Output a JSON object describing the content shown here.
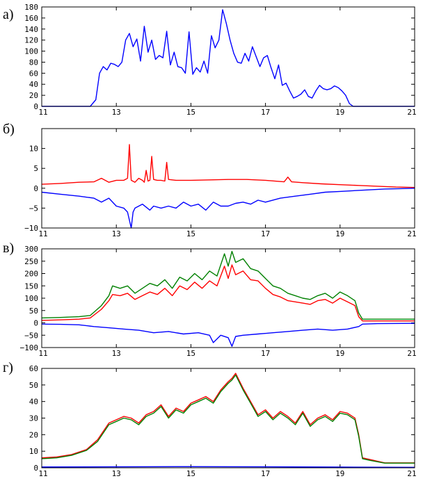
{
  "chart_data": [
    {
      "type": "line",
      "panel_label": "а)",
      "xlim": [
        11,
        21
      ],
      "ylim": [
        0,
        180
      ],
      "xticks": [
        "11",
        "13",
        "15",
        "17",
        "19",
        "21"
      ],
      "xtick_values": [
        11,
        13,
        15,
        17,
        19,
        21
      ],
      "yticks": [
        "0",
        "20",
        "40",
        "60",
        "80",
        "100",
        "120",
        "140",
        "160",
        "180"
      ],
      "ytick_values": [
        0,
        20,
        40,
        60,
        80,
        100,
        120,
        140,
        160,
        180
      ],
      "series": [
        {
          "name": "blue",
          "color": "#0000ff",
          "x": [
            11,
            12.3,
            12.45,
            12.55,
            12.65,
            12.75,
            12.85,
            12.95,
            13.05,
            13.15,
            13.25,
            13.35,
            13.45,
            13.55,
            13.65,
            13.75,
            13.85,
            13.95,
            14.05,
            14.15,
            14.25,
            14.35,
            14.45,
            14.55,
            14.65,
            14.75,
            14.85,
            14.95,
            15.05,
            15.15,
            15.25,
            15.35,
            15.45,
            15.55,
            15.65,
            15.75,
            15.85,
            15.95,
            16.05,
            16.15,
            16.25,
            16.35,
            16.45,
            16.55,
            16.65,
            16.75,
            16.85,
            16.95,
            17.05,
            17.15,
            17.25,
            17.35,
            17.45,
            17.55,
            17.65,
            17.75,
            17.85,
            17.95,
            18.05,
            18.15,
            18.25,
            18.35,
            18.45,
            18.55,
            18.65,
            18.75,
            18.85,
            18.95,
            19.05,
            19.15,
            19.25,
            19.35,
            19.45,
            19.55,
            19.65,
            21
          ],
          "y": [
            0,
            0,
            12,
            60,
            72,
            66,
            78,
            76,
            72,
            80,
            120,
            132,
            108,
            122,
            82,
            145,
            98,
            120,
            85,
            92,
            88,
            136,
            75,
            98,
            72,
            70,
            60,
            135,
            58,
            70,
            62,
            82,
            60,
            128,
            106,
            120,
            175,
            150,
            120,
            96,
            80,
            78,
            96,
            82,
            108,
            90,
            72,
            88,
            92,
            70,
            50,
            75,
            38,
            42,
            28,
            15,
            18,
            22,
            30,
            18,
            15,
            28,
            38,
            32,
            30,
            32,
            37,
            34,
            28,
            20,
            5,
            0,
            0,
            0,
            0,
            0
          ]
        }
      ]
    },
    {
      "type": "line",
      "panel_label": "б)",
      "xlim": [
        11,
        21
      ],
      "ylim": [
        -10,
        15
      ],
      "xticks": [
        "11",
        "13",
        "15",
        "17",
        "19",
        "21"
      ],
      "xtick_values": [
        11,
        13,
        15,
        17,
        19,
        21
      ],
      "yticks": [
        "−10",
        "−5",
        "0",
        "5",
        "10"
      ],
      "ytick_values": [
        -10,
        -5,
        0,
        5,
        10
      ],
      "series": [
        {
          "name": "red",
          "color": "#ff0000",
          "x": [
            11,
            11.5,
            12,
            12.4,
            12.6,
            12.8,
            13,
            13.2,
            13.3,
            13.35,
            13.4,
            13.5,
            13.6,
            13.7,
            13.75,
            13.8,
            13.85,
            13.9,
            13.95,
            14.0,
            14.1,
            14.2,
            14.3,
            14.35,
            14.4,
            14.6,
            15,
            15.5,
            16,
            16.5,
            17,
            17.5,
            17.6,
            17.7,
            18,
            18.5,
            19,
            19.5,
            20,
            20.5,
            21
          ],
          "y": [
            1.0,
            1.2,
            1.5,
            1.6,
            2.5,
            1.5,
            2.0,
            2.0,
            2.5,
            11.0,
            2.0,
            1.5,
            2.5,
            2.0,
            1.5,
            4.5,
            1.8,
            2.0,
            8.0,
            2.2,
            2.0,
            2.0,
            1.8,
            6.5,
            2.2,
            2.0,
            2.0,
            2.1,
            2.2,
            2.2,
            2.0,
            1.6,
            2.8,
            1.6,
            1.4,
            1.1,
            0.9,
            0.7,
            0.5,
            0.3,
            0.2
          ]
        },
        {
          "name": "blue",
          "color": "#0000ff",
          "x": [
            11,
            11.5,
            12,
            12.4,
            12.6,
            12.8,
            13,
            13.2,
            13.3,
            13.4,
            13.45,
            13.5,
            13.7,
            13.9,
            14,
            14.2,
            14.4,
            14.6,
            14.8,
            15,
            15.2,
            15.4,
            15.6,
            15.8,
            16,
            16.2,
            16.4,
            16.6,
            16.8,
            17,
            17.4,
            17.8,
            18.2,
            18.6,
            19,
            19.4,
            19.8,
            20.2,
            20.6,
            21
          ],
          "y": [
            -1.0,
            -1.5,
            -2.0,
            -2.5,
            -3.5,
            -2.5,
            -4.5,
            -5.0,
            -6.0,
            -10.0,
            -6.0,
            -5.0,
            -4.0,
            -5.5,
            -4.5,
            -5.0,
            -4.5,
            -5.0,
            -3.5,
            -4.5,
            -4.0,
            -5.5,
            -3.5,
            -4.5,
            -4.5,
            -3.8,
            -3.5,
            -4.0,
            -3.0,
            -3.5,
            -2.5,
            -2.0,
            -1.5,
            -1.0,
            -0.8,
            -0.6,
            -0.4,
            -0.2,
            -0.1,
            0.0
          ]
        }
      ]
    },
    {
      "type": "line",
      "panel_label": "в)",
      "xlim": [
        11,
        21
      ],
      "ylim": [
        -100,
        300
      ],
      "xticks": [
        "11",
        "13",
        "15",
        "17",
        "19",
        "21"
      ],
      "xtick_values": [
        11,
        13,
        15,
        17,
        19,
        21
      ],
      "yticks": [
        "−100",
        "−50",
        "0",
        "50",
        "100",
        "150",
        "200",
        "250",
        "300"
      ],
      "ytick_values": [
        -100,
        -50,
        0,
        50,
        100,
        150,
        200,
        250,
        300
      ],
      "series": [
        {
          "name": "green",
          "color": "#008000",
          "x": [
            11,
            11.5,
            12,
            12.3,
            12.6,
            12.8,
            12.9,
            13.1,
            13.3,
            13.5,
            13.7,
            13.9,
            14.1,
            14.3,
            14.5,
            14.7,
            14.9,
            15.1,
            15.3,
            15.5,
            15.7,
            15.9,
            16.0,
            16.1,
            16.2,
            16.4,
            16.6,
            16.8,
            17,
            17.2,
            17.4,
            17.6,
            17.8,
            18,
            18.2,
            18.4,
            18.6,
            18.8,
            19,
            19.2,
            19.4,
            19.5,
            19.6,
            20,
            21
          ],
          "y": [
            20,
            22,
            25,
            30,
            70,
            110,
            150,
            140,
            150,
            120,
            140,
            160,
            150,
            175,
            140,
            185,
            170,
            200,
            175,
            210,
            190,
            280,
            230,
            290,
            245,
            260,
            220,
            210,
            180,
            150,
            140,
            120,
            110,
            100,
            95,
            110,
            120,
            100,
            125,
            110,
            90,
            40,
            15,
            15,
            15
          ]
        },
        {
          "name": "red",
          "color": "#ff0000",
          "x": [
            11,
            11.5,
            12,
            12.3,
            12.6,
            12.8,
            12.9,
            13.1,
            13.3,
            13.5,
            13.7,
            13.9,
            14.1,
            14.3,
            14.5,
            14.7,
            14.9,
            15.1,
            15.3,
            15.5,
            15.7,
            15.9,
            16.0,
            16.1,
            16.2,
            16.4,
            16.6,
            16.8,
            17,
            17.2,
            17.4,
            17.6,
            17.8,
            18,
            18.2,
            18.4,
            18.6,
            18.8,
            19,
            19.2,
            19.4,
            19.5,
            19.6,
            20,
            21
          ],
          "y": [
            10,
            12,
            15,
            20,
            55,
            90,
            115,
            110,
            120,
            95,
            110,
            125,
            115,
            140,
            110,
            150,
            135,
            165,
            140,
            170,
            150,
            230,
            180,
            235,
            195,
            210,
            175,
            170,
            140,
            115,
            105,
            90,
            85,
            80,
            75,
            90,
            95,
            80,
            100,
            85,
            70,
            25,
            8,
            8,
            8
          ]
        },
        {
          "name": "blue",
          "color": "#0000ff",
          "x": [
            11,
            11.5,
            12,
            12.4,
            12.8,
            13.2,
            13.6,
            14,
            14.4,
            14.8,
            15.2,
            15.5,
            15.6,
            15.8,
            16,
            16.1,
            16.2,
            16.4,
            16.8,
            17.2,
            17.6,
            18,
            18.4,
            18.8,
            19.2,
            19.5,
            19.6,
            20,
            21
          ],
          "y": [
            -5,
            -6,
            -8,
            -15,
            -20,
            -25,
            -30,
            -40,
            -35,
            -45,
            -40,
            -50,
            -80,
            -50,
            -60,
            -95,
            -55,
            -50,
            -45,
            -40,
            -35,
            -30,
            -25,
            -30,
            -25,
            -15,
            -5,
            -3,
            -2
          ]
        }
      ]
    },
    {
      "type": "line",
      "panel_label": "г)",
      "xlim": [
        11,
        21
      ],
      "ylim": [
        0,
        60
      ],
      "xticks": [
        "11",
        "13",
        "15",
        "17",
        "19",
        "21"
      ],
      "xtick_values": [
        11,
        13,
        15,
        17,
        19,
        21
      ],
      "yticks": [
        "0",
        "10",
        "20",
        "30",
        "40",
        "50",
        "60"
      ],
      "ytick_values": [
        0,
        10,
        20,
        30,
        40,
        50,
        60
      ],
      "series": [
        {
          "name": "red",
          "color": "#ff0000",
          "x": [
            11,
            11.4,
            11.8,
            12.2,
            12.5,
            12.8,
            13.0,
            13.2,
            13.4,
            13.6,
            13.8,
            14.0,
            14.2,
            14.4,
            14.6,
            14.8,
            15.0,
            15.2,
            15.4,
            15.6,
            15.8,
            16.0,
            16.1,
            16.2,
            16.4,
            16.6,
            16.8,
            17.0,
            17.2,
            17.4,
            17.6,
            17.8,
            18.0,
            18.2,
            18.4,
            18.6,
            18.8,
            19.0,
            19.2,
            19.4,
            19.5,
            19.6,
            19.8,
            20.2,
            20.6,
            21
          ],
          "y": [
            6,
            6.5,
            8,
            11,
            17,
            27,
            29,
            31,
            30,
            27,
            32,
            34,
            38,
            31,
            36,
            34,
            39,
            41,
            43,
            40,
            47,
            52,
            54,
            57,
            48,
            40,
            32,
            35,
            30,
            34,
            31,
            27,
            34,
            26,
            30,
            32,
            29,
            34,
            33,
            30,
            20,
            6,
            5,
            3,
            3,
            3
          ]
        },
        {
          "name": "green",
          "color": "#008000",
          "x": [
            11,
            11.4,
            11.8,
            12.2,
            12.5,
            12.8,
            13.0,
            13.2,
            13.4,
            13.6,
            13.8,
            14.0,
            14.2,
            14.4,
            14.6,
            14.8,
            15.0,
            15.2,
            15.4,
            15.6,
            15.8,
            16.0,
            16.1,
            16.2,
            16.4,
            16.6,
            16.8,
            17.0,
            17.2,
            17.4,
            17.6,
            17.8,
            18.0,
            18.2,
            18.4,
            18.6,
            18.8,
            19.0,
            19.2,
            19.4,
            19.5,
            19.6,
            19.8,
            20.2,
            20.6,
            21
          ],
          "y": [
            5.5,
            6,
            7.5,
            10.5,
            16,
            26,
            28,
            30,
            29,
            26,
            31,
            33,
            37,
            30,
            35,
            33,
            38,
            40,
            42,
            39,
            46,
            51,
            53,
            56,
            47,
            39,
            31,
            34,
            29,
            33,
            30,
            26,
            33,
            25,
            29,
            31,
            28,
            33,
            32,
            29,
            19,
            5.5,
            4.5,
            2.8,
            2.8,
            2.8
          ]
        },
        {
          "name": "blue",
          "color": "#0000ff",
          "x": [
            11,
            13,
            15,
            17,
            19,
            21
          ],
          "y": [
            0.5,
            0.6,
            0.7,
            0.6,
            0.4,
            0.3
          ]
        }
      ]
    }
  ]
}
